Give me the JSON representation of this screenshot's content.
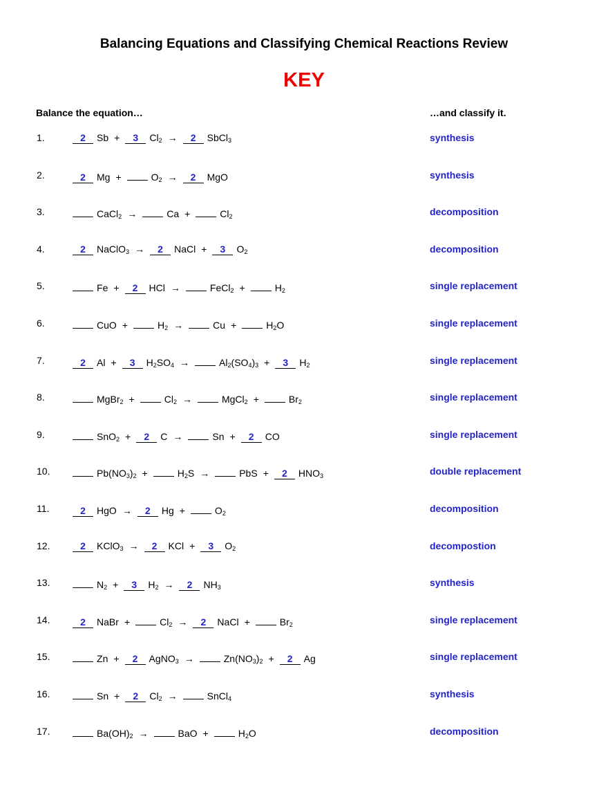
{
  "header": {
    "title": "Balancing Equations and Classifying Chemical Reactions Review",
    "key": "KEY",
    "left": "Balance the equation…",
    "right": "…and classify it."
  },
  "items": [
    {
      "number": "1.",
      "reactants": [
        {
          "coef": 2,
          "formula": "Sb"
        },
        {
          "coef": 3,
          "formula": "Cl2"
        }
      ],
      "products": [
        {
          "coef": 2,
          "formula": "SbCl3"
        }
      ],
      "classification": "synthesis"
    },
    {
      "number": "2.",
      "reactants": [
        {
          "coef": 2,
          "formula": "Mg"
        },
        {
          "formula": "O2"
        }
      ],
      "products": [
        {
          "coef": 2,
          "formula": "MgO"
        }
      ],
      "classification": "synthesis"
    },
    {
      "number": "3.",
      "reactants": [
        {
          "formula": "CaCl2"
        }
      ],
      "products": [
        {
          "formula": "Ca"
        },
        {
          "formula": "Cl2"
        }
      ],
      "classification": "decomposition"
    },
    {
      "number": "4.",
      "reactants": [
        {
          "coef": 2,
          "formula": "NaClO3"
        }
      ],
      "products": [
        {
          "coef": 2,
          "formula": "NaCl"
        },
        {
          "coef": 3,
          "formula": "O2"
        }
      ],
      "classification": "decomposition"
    },
    {
      "number": "5.",
      "reactants": [
        {
          "formula": "Fe"
        },
        {
          "coef": 2,
          "formula": "HCl"
        }
      ],
      "products": [
        {
          "formula": "FeCl2"
        },
        {
          "formula": "H2"
        }
      ],
      "classification": "single replacement"
    },
    {
      "number": "6.",
      "reactants": [
        {
          "formula": "CuO"
        },
        {
          "formula": "H2"
        }
      ],
      "products": [
        {
          "formula": "Cu"
        },
        {
          "formula": "H2O"
        }
      ],
      "classification": "single replacement"
    },
    {
      "number": "7.",
      "reactants": [
        {
          "coef": 2,
          "formula": "Al"
        },
        {
          "coef": 3,
          "formula": "H2SO4"
        }
      ],
      "products": [
        {
          "formula": "Al2(SO4)3"
        },
        {
          "coef": 3,
          "formula": "H2"
        }
      ],
      "classification": "single replacement"
    },
    {
      "number": "8.",
      "reactants": [
        {
          "formula": "MgBr2"
        },
        {
          "formula": "Cl2"
        }
      ],
      "products": [
        {
          "formula": "MgCl2"
        },
        {
          "formula": "Br2"
        }
      ],
      "classification": "single replacement"
    },
    {
      "number": "9.",
      "reactants": [
        {
          "formula": "SnO2"
        },
        {
          "coef": 2,
          "formula": "C"
        }
      ],
      "products": [
        {
          "formula": "Sn"
        },
        {
          "coef": 2,
          "formula": "CO"
        }
      ],
      "classification": "single replacement"
    },
    {
      "number": "10.",
      "reactants": [
        {
          "formula": "Pb(NO3)2"
        },
        {
          "formula": "H2S"
        }
      ],
      "products": [
        {
          "formula": "PbS"
        },
        {
          "coef": 2,
          "formula": "HNO3"
        }
      ],
      "classification": "double replacement"
    },
    {
      "number": "11.",
      "reactants": [
        {
          "coef": 2,
          "formula": "HgO"
        }
      ],
      "products": [
        {
          "coef": 2,
          "formula": "Hg"
        },
        {
          "formula": "O2"
        }
      ],
      "classification": "decomposition"
    },
    {
      "number": "12.",
      "reactants": [
        {
          "coef": 2,
          "formula": "KClO3"
        }
      ],
      "products": [
        {
          "coef": 2,
          "formula": "KCl"
        },
        {
          "coef": 3,
          "formula": "O2"
        }
      ],
      "classification": "decompostion"
    },
    {
      "number": "13.",
      "reactants": [
        {
          "formula": "N2"
        },
        {
          "coef": 3,
          "formula": "H2"
        }
      ],
      "products": [
        {
          "coef": 2,
          "formula": "NH3"
        }
      ],
      "classification": "synthesis"
    },
    {
      "number": "14.",
      "reactants": [
        {
          "coef": 2,
          "formula": "NaBr"
        },
        {
          "formula": "Cl2"
        }
      ],
      "products": [
        {
          "coef": 2,
          "formula": "NaCl"
        },
        {
          "formula": "Br2"
        }
      ],
      "classification": "single replacement"
    },
    {
      "number": "15.",
      "reactants": [
        {
          "formula": "Zn"
        },
        {
          "coef": 2,
          "formula": "AgNO3"
        }
      ],
      "products": [
        {
          "formula": "Zn(NO3)2"
        },
        {
          "coef": 2,
          "formula": "Ag"
        }
      ],
      "classification": "single replacement"
    },
    {
      "number": "16.",
      "reactants": [
        {
          "formula": "Sn"
        },
        {
          "coef": 2,
          "formula": "Cl2"
        }
      ],
      "products": [
        {
          "formula": "SnCl4"
        }
      ],
      "classification": "synthesis"
    },
    {
      "number": "17.",
      "reactants": [
        {
          "formula": "Ba(OH)2"
        }
      ],
      "products": [
        {
          "formula": "BaO"
        },
        {
          "formula": "H2O"
        }
      ],
      "classification": "decomposition"
    }
  ]
}
